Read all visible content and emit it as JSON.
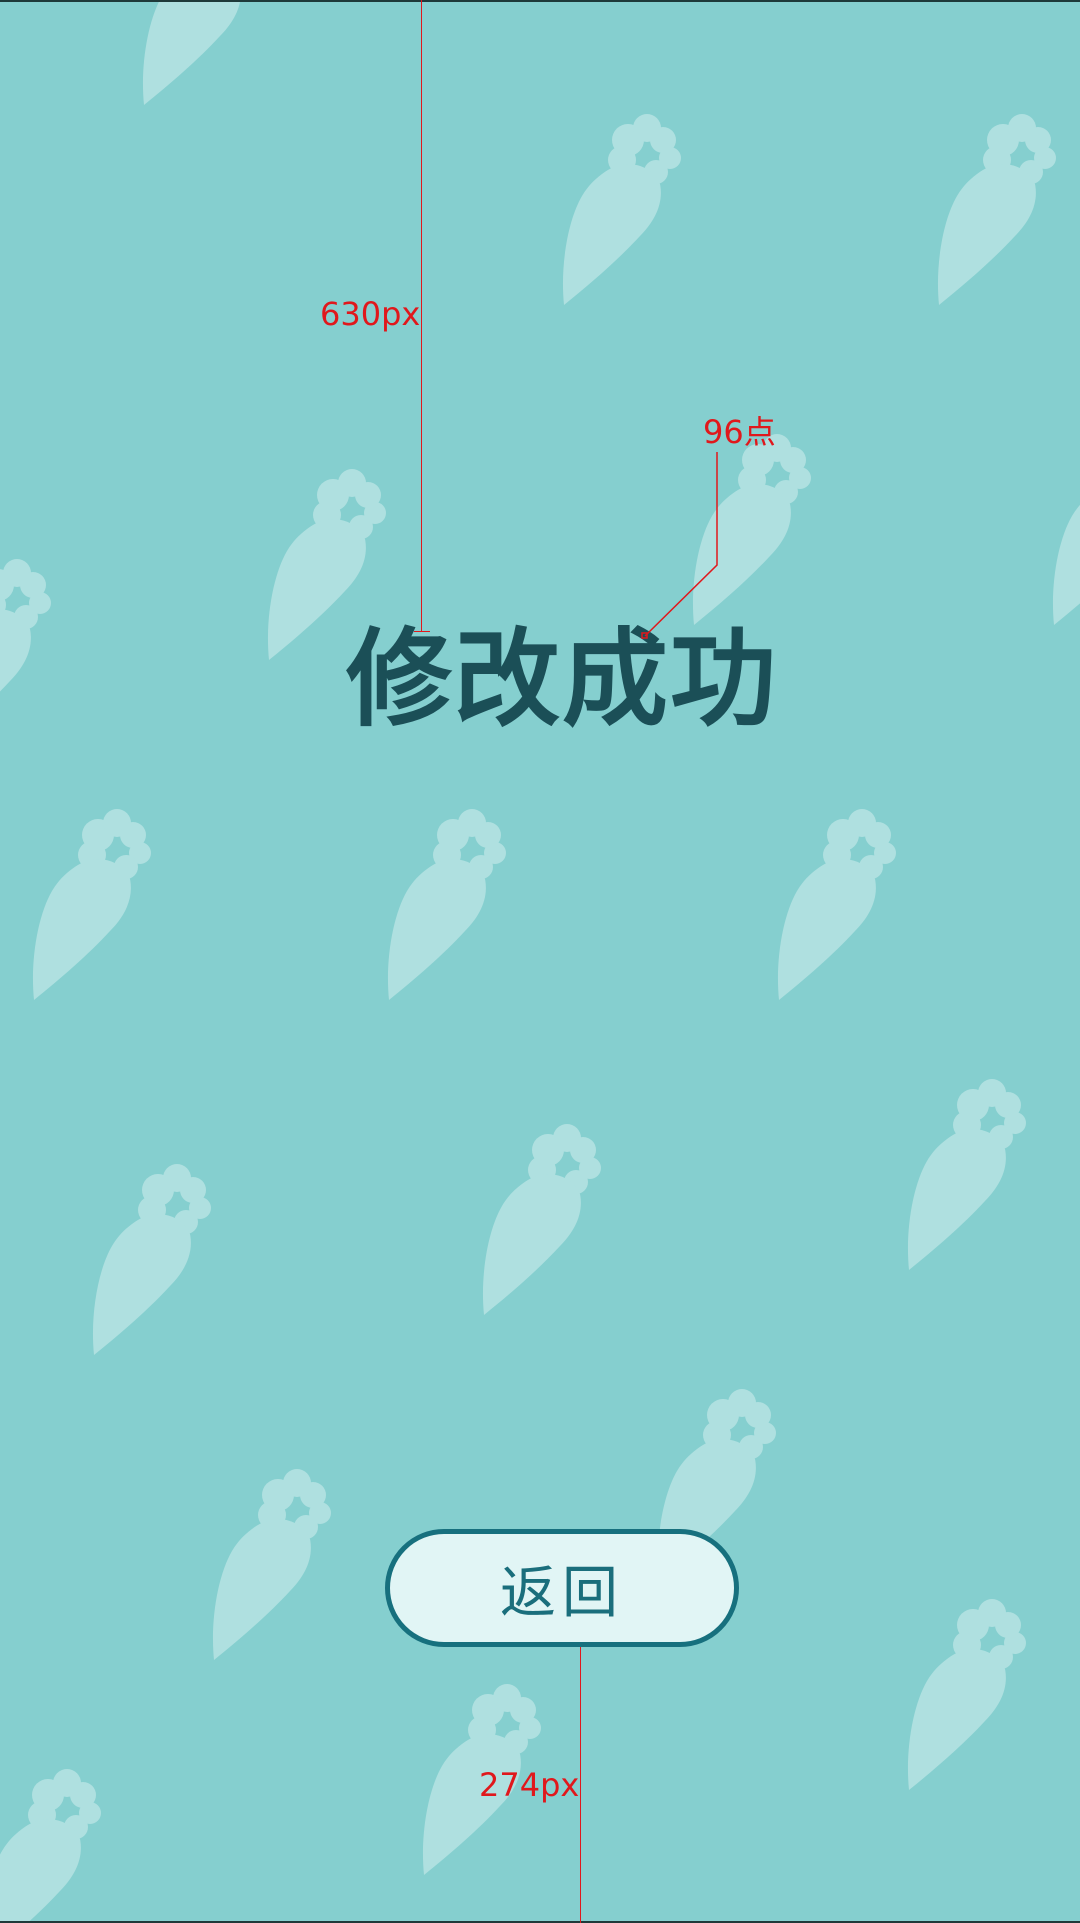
{
  "screen": {
    "title": "修改成功",
    "back_button_label": "返回"
  },
  "annotations": {
    "top_distance": "630px",
    "font_size": "96点",
    "bottom_distance": "274px"
  },
  "colors": {
    "background": "#85cfcf",
    "pattern": "#afe0e0",
    "title": "#1b4f57",
    "button_fill": "#e1f5f5",
    "button_border": "#17707e",
    "annotation": "#e0181c"
  },
  "icons": {
    "pattern": "carrot-icon"
  }
}
